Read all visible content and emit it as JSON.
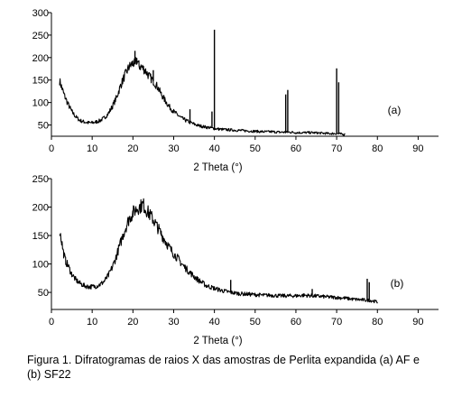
{
  "chart_data": [
    {
      "type": "line",
      "label": "(a)",
      "xlabel": "2 Theta (°)",
      "ylabel": "",
      "xlim": [
        0,
        95
      ],
      "ylim": [
        25,
        300
      ],
      "xticks": [
        0,
        10,
        20,
        30,
        40,
        50,
        60,
        70,
        80,
        90
      ],
      "yticks": [
        50,
        100,
        150,
        200,
        250,
        300
      ],
      "grid": false,
      "series": [
        {
          "x": [
            2,
            2.5,
            3,
            4,
            5,
            6,
            7,
            8,
            9,
            10,
            11,
            12,
            13,
            14,
            15,
            16,
            17,
            18,
            19,
            20,
            20.5,
            21,
            21.5,
            22,
            23,
            24,
            25,
            26,
            27,
            28,
            29,
            30,
            31,
            32,
            33,
            34,
            35,
            36,
            37,
            38,
            39,
            40,
            41,
            42,
            44,
            46,
            48,
            50,
            52,
            54,
            56,
            57,
            58,
            59,
            60,
            62,
            64,
            66,
            68,
            69,
            70,
            71,
            72
          ],
          "y": [
            148,
            135,
            120,
            98,
            80,
            68,
            60,
            57,
            55,
            55,
            57,
            60,
            66,
            76,
            92,
            112,
            138,
            160,
            178,
            188,
            185,
            195,
            182,
            180,
            172,
            158,
            148,
            135,
            118,
            103,
            90,
            80,
            72,
            65,
            60,
            56,
            52,
            49,
            47,
            45,
            44,
            42,
            41,
            40,
            39,
            38,
            37,
            36,
            35,
            35,
            34,
            34,
            34,
            34,
            33,
            33,
            33,
            32,
            31,
            31,
            31,
            30,
            29
          ]
        }
      ],
      "peaks": [
        [
          20.5,
          215
        ],
        [
          25,
          172
        ],
        [
          34,
          85
        ],
        [
          39.4,
          80
        ],
        [
          40,
          262
        ],
        [
          57.5,
          118
        ],
        [
          58,
          128
        ],
        [
          70,
          176
        ],
        [
          70.5,
          145
        ]
      ]
    },
    {
      "type": "line",
      "label": "(b)",
      "xlabel": "2 Theta (°)",
      "ylabel": "",
      "xlim": [
        0,
        95
      ],
      "ylim": [
        20,
        250
      ],
      "xticks": [
        0,
        10,
        20,
        30,
        40,
        50,
        60,
        70,
        80,
        90
      ],
      "yticks": [
        50,
        100,
        150,
        200,
        250
      ],
      "grid": false,
      "series": [
        {
          "x": [
            2,
            2.5,
            3,
            3.5,
            4,
            5,
            6,
            7,
            8,
            9,
            10,
            11,
            12,
            13,
            14,
            15,
            16,
            17,
            18,
            19,
            20,
            21,
            22,
            22.5,
            23,
            24,
            25,
            26,
            27,
            28,
            29,
            30,
            31,
            32,
            33,
            34,
            35,
            36,
            37,
            38,
            40,
            42,
            44,
            46,
            48,
            50,
            52,
            54,
            56,
            58,
            60,
            62,
            64,
            66,
            68,
            70,
            72,
            74,
            76,
            78,
            79,
            80
          ],
          "y": [
            160,
            140,
            118,
            105,
            98,
            82,
            72,
            66,
            62,
            60,
            60,
            61,
            64,
            70,
            80,
            95,
            115,
            138,
            160,
            178,
            190,
            198,
            202,
            205,
            198,
            188,
            178,
            165,
            152,
            140,
            128,
            118,
            110,
            100,
            92,
            85,
            78,
            72,
            67,
            62,
            57,
            53,
            50,
            48,
            47,
            46,
            45,
            45,
            44,
            44,
            44,
            45,
            44,
            43,
            42,
            41,
            40,
            38,
            37,
            36,
            35,
            33
          ]
        }
      ],
      "peaks": [
        [
          44,
          72
        ],
        [
          64,
          56
        ],
        [
          77.5,
          74
        ],
        [
          78,
          68
        ]
      ]
    }
  ],
  "caption": "Figura 1. Difratogramas de raios X das amostras de Perlita expandida (a) AF e (b) SF22"
}
